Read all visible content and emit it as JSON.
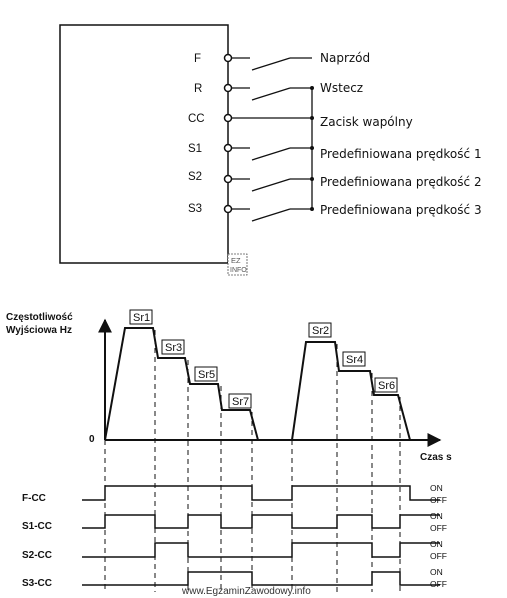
{
  "terminals": [
    {
      "id": "F",
      "desc": "Naprzód"
    },
    {
      "id": "R",
      "desc": "Wstecz"
    },
    {
      "id": "CC",
      "desc": "Zacisk wapólny"
    },
    {
      "id": "S1",
      "desc": "Predefiniowana prędkość 1"
    },
    {
      "id": "S2",
      "desc": "Predefiniowana prędkość 2"
    },
    {
      "id": "S3",
      "desc": "Predefiniowana prędkość 3"
    }
  ],
  "logo": "EZ INFO",
  "graph": {
    "ylabel_line1": "Częstotliwość",
    "ylabel_line2": "Wyjściowa  Hz",
    "origin": "0",
    "xlabel": "Czas  s",
    "speeds": [
      "Sr1",
      "Sr3",
      "Sr5",
      "Sr7",
      "Sr2",
      "Sr4",
      "Sr6"
    ]
  },
  "signals": [
    {
      "name": "F-CC",
      "on": "ON",
      "off": "OFF"
    },
    {
      "name": "S1-CC",
      "on": "ON",
      "off": "OFF"
    },
    {
      "name": "S2-CC",
      "on": "ON",
      "off": "OFF"
    },
    {
      "name": "S3-CC",
      "on": "ON",
      "off": "OFF"
    }
  ],
  "watermark": "www.EgzaminZawodowy.info"
}
